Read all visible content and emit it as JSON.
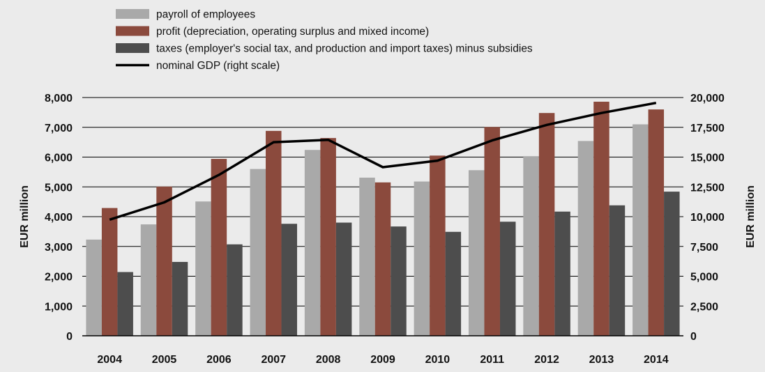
{
  "chart_data": {
    "type": "bar",
    "categories": [
      "2004",
      "2005",
      "2006",
      "2007",
      "2008",
      "2009",
      "2010",
      "2011",
      "2012",
      "2013",
      "2014"
    ],
    "series": [
      {
        "name": "payroll of employees",
        "kind": "bar",
        "axis": "left",
        "color": "#a9a9a9",
        "values": [
          3230,
          3740,
          4510,
          5600,
          6240,
          5310,
          5180,
          5560,
          6030,
          6540,
          7100
        ]
      },
      {
        "name": "profit (depreciation, operating surplus and mixed income)",
        "kind": "bar",
        "axis": "left",
        "color": "#8b4a3d",
        "values": [
          4290,
          5010,
          5940,
          6880,
          6640,
          5150,
          6050,
          7010,
          7480,
          7860,
          7600
        ]
      },
      {
        "name": "taxes (employer's social tax, and production and import taxes) minus subsidies",
        "kind": "bar",
        "axis": "left",
        "color": "#4d4d4d",
        "values": [
          2140,
          2480,
          3070,
          3760,
          3800,
          3670,
          3490,
          3830,
          4170,
          4380,
          4840
        ]
      },
      {
        "name": "nominal GDP (right scale)",
        "kind": "line",
        "axis": "right",
        "color": "#000000",
        "values": [
          9750,
          11200,
          13500,
          16250,
          16450,
          14150,
          14700,
          16400,
          17700,
          18700,
          19550
        ]
      }
    ],
    "ylabel": "EUR million",
    "y2label": "EUR million",
    "ylim": [
      0,
      8000
    ],
    "y2lim": [
      0,
      20000
    ],
    "yticks": [
      "0",
      "1,000",
      "2,000",
      "3,000",
      "4,000",
      "5,000",
      "6,000",
      "7,000",
      "8,000"
    ],
    "y2ticks": [
      "0",
      "2,500",
      "5,000",
      "7,500",
      "10,000",
      "12,500",
      "15,000",
      "17,500",
      "20,000"
    ],
    "grid": true,
    "legend": "top-left"
  }
}
